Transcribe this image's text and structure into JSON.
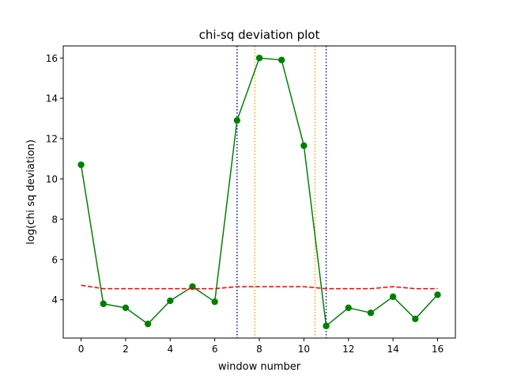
{
  "chart_data": {
    "type": "line",
    "title": "chi-sq deviation plot",
    "xlabel": "window number",
    "ylabel": "log(chi sq deviation)",
    "xlim": [
      -0.8,
      16.8
    ],
    "ylim": [
      2.1,
      16.6
    ],
    "xticks": [
      0,
      2,
      4,
      6,
      8,
      10,
      12,
      14,
      16
    ],
    "yticks": [
      4,
      6,
      8,
      10,
      12,
      14,
      16
    ],
    "grid": false,
    "series": [
      {
        "name": "chi-sq deviation",
        "style": "solid-markers",
        "color": "#008000",
        "x": [
          0,
          1,
          2,
          3,
          4,
          5,
          6,
          7,
          8,
          9,
          10,
          11,
          12,
          13,
          14,
          15,
          16
        ],
        "values": [
          10.7,
          3.8,
          3.6,
          2.8,
          3.95,
          4.65,
          3.9,
          12.9,
          16.0,
          15.9,
          11.65,
          2.7,
          3.6,
          3.35,
          4.15,
          3.05,
          4.25
        ]
      },
      {
        "name": "threshold",
        "style": "dashed",
        "color": "#ff0000",
        "x": [
          0,
          1,
          2,
          3,
          4,
          5,
          6,
          7,
          8,
          9,
          10,
          11,
          12,
          13,
          14,
          15,
          16
        ],
        "values": [
          4.72,
          4.55,
          4.55,
          4.55,
          4.55,
          4.55,
          4.55,
          4.65,
          4.65,
          4.65,
          4.65,
          4.55,
          4.55,
          4.55,
          4.65,
          4.55,
          4.55
        ]
      }
    ],
    "vlines": [
      {
        "name": "blue-boundary-left",
        "x": 7.0,
        "color": "#0000ff",
        "style": "dotted"
      },
      {
        "name": "blue-boundary-right",
        "x": 11.0,
        "color": "#0000ff",
        "style": "dotted"
      },
      {
        "name": "orange-boundary-left",
        "x": 7.8,
        "color": "#ffa500",
        "style": "dotted"
      },
      {
        "name": "orange-boundary-right",
        "x": 10.5,
        "color": "#ffa500",
        "style": "dotted"
      }
    ]
  }
}
